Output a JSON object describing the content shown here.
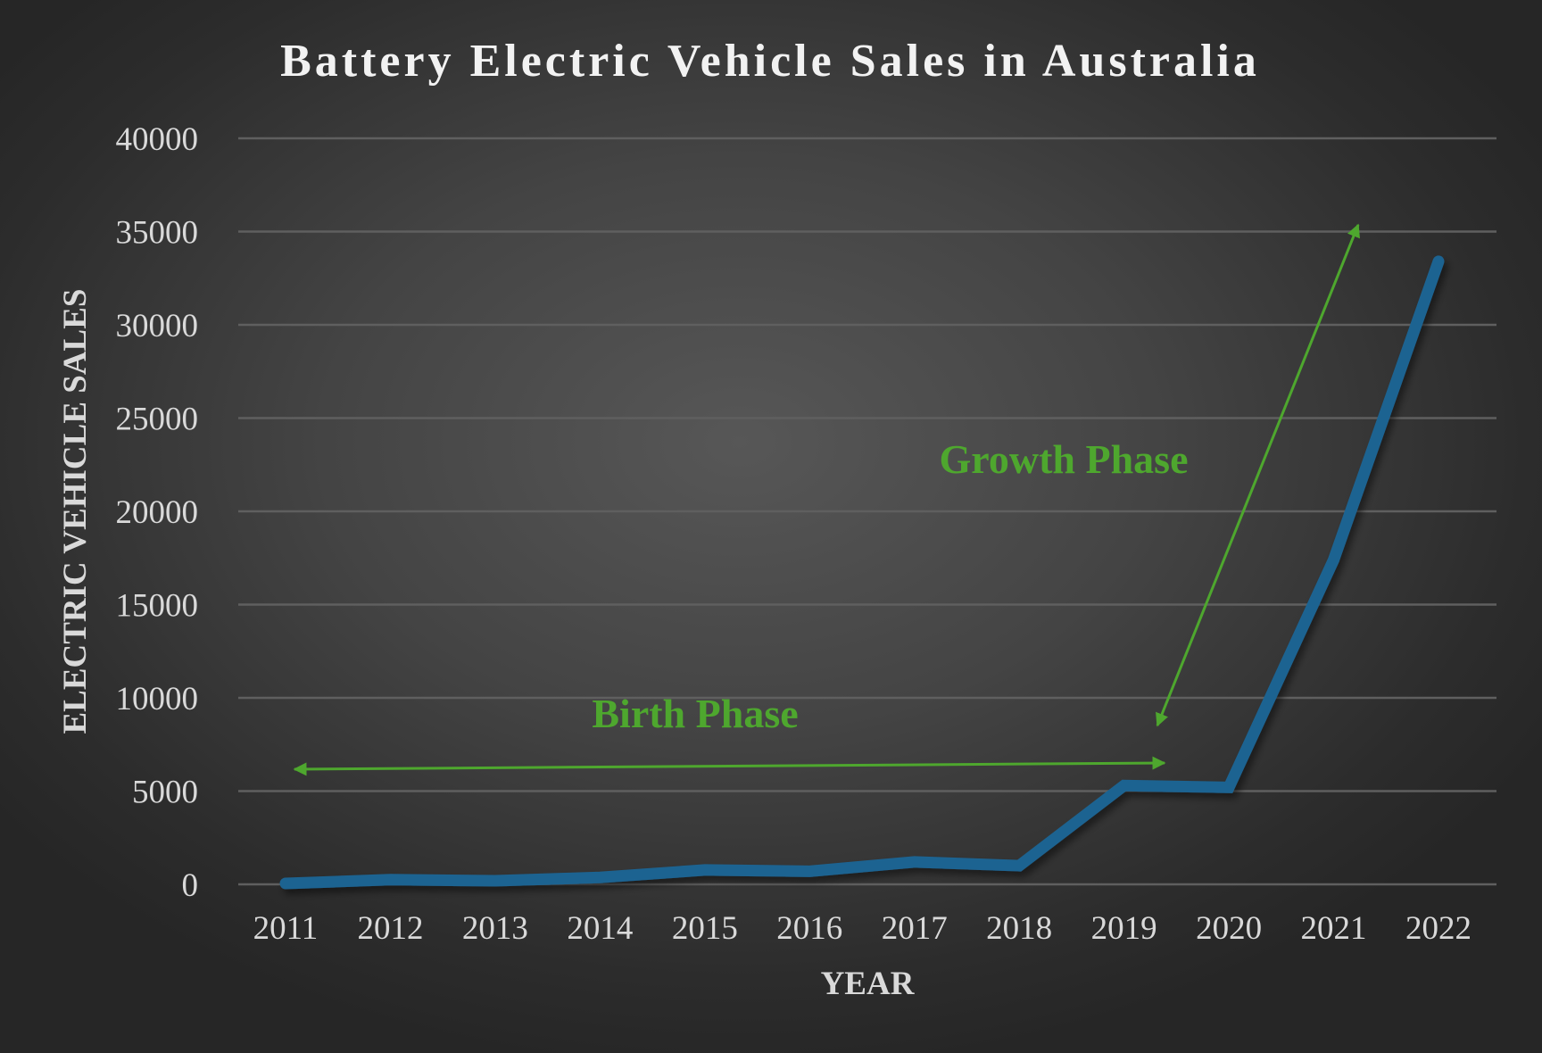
{
  "chart_data": {
    "type": "line",
    "title": "Battery Electric Vehicle Sales in Australia",
    "xlabel": "YEAR",
    "ylabel": "ELECTRIC VEHICLE SALES",
    "categories": [
      "2011",
      "2012",
      "2013",
      "2014",
      "2015",
      "2016",
      "2017",
      "2018",
      "2019",
      "2020",
      "2021",
      "2022"
    ],
    "values": [
      50,
      250,
      190,
      370,
      770,
      700,
      1200,
      1000,
      5300,
      5200,
      17400,
      33400
    ],
    "ylim": [
      0,
      40000
    ],
    "yticks": [
      "0",
      "5000",
      "10000",
      "15000",
      "20000",
      "25000",
      "30000",
      "35000",
      "40000"
    ],
    "grid": true,
    "legend": "none",
    "line_color": "#1f6391",
    "annotations": [
      {
        "text": "Birth Phase",
        "color": "#4ea72e",
        "arrow": "double-headed horizontal, 2011 to 2019"
      },
      {
        "text": "Growth Phase",
        "color": "#4ea72e",
        "arrow": "double-headed diagonal, from 2019 up to above 35000"
      }
    ]
  }
}
